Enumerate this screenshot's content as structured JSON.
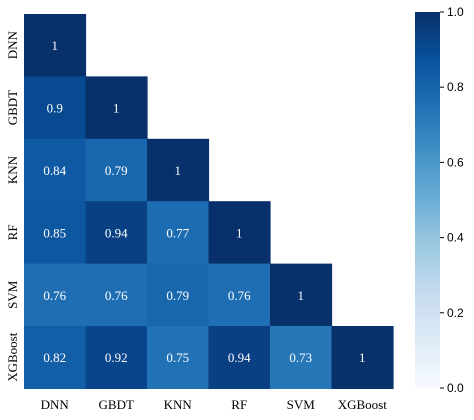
{
  "chart_data": {
    "type": "heatmap",
    "title": "",
    "xlabel": "",
    "ylabel": "",
    "labels": [
      "DNN",
      "GBDT",
      "KNN",
      "RF",
      "SVM",
      "XGBoost"
    ],
    "matrix": [
      [
        1,
        null,
        null,
        null,
        null,
        null
      ],
      [
        0.9,
        1,
        null,
        null,
        null,
        null
      ],
      [
        0.84,
        0.79,
        1,
        null,
        null,
        null
      ],
      [
        0.85,
        0.94,
        0.77,
        1,
        null,
        null
      ],
      [
        0.76,
        0.76,
        0.79,
        0.76,
        1,
        null
      ],
      [
        0.82,
        0.92,
        0.75,
        0.94,
        0.73,
        1
      ]
    ],
    "cell_labels": [
      [
        "1",
        "",
        "",
        "",
        "",
        ""
      ],
      [
        "0.9",
        "1",
        "",
        "",
        "",
        ""
      ],
      [
        "0.84",
        "0.79",
        "1",
        "",
        "",
        ""
      ],
      [
        "0.85",
        "0.94",
        "0.77",
        "1",
        "",
        ""
      ],
      [
        "0.76",
        "0.76",
        "0.79",
        "0.76",
        "1",
        ""
      ],
      [
        "0.82",
        "0.92",
        "0.75",
        "0.94",
        "0.73",
        "1"
      ]
    ],
    "mask": "upper-triangle",
    "colormap": "Blues",
    "colorbar": {
      "range": [
        0,
        1
      ],
      "ticks": [
        "0.0",
        "0.2",
        "0.4",
        "0.6",
        "0.8",
        "1.0"
      ],
      "position": "right"
    },
    "colors": {
      "low": "#f7fbff",
      "high": "#08306b"
    }
  }
}
